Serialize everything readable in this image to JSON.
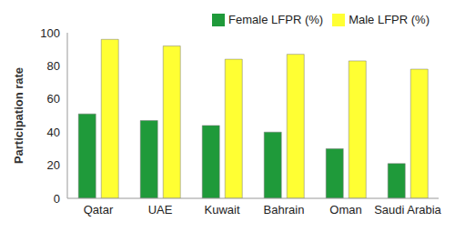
{
  "chart_data": {
    "type": "bar",
    "y_label": "Participation rate",
    "categories": [
      "Qatar",
      "UAE",
      "Kuwait",
      "Bahrain",
      "Oman",
      "Saudi Arabia"
    ],
    "series": [
      {
        "name": "Female LFPR (%)",
        "color": "#1f9a3a",
        "values": [
          51,
          47,
          44,
          40,
          30,
          21
        ]
      },
      {
        "name": "Male LFPR (%)",
        "color": "#ffff33",
        "values": [
          96,
          92,
          84,
          87,
          83,
          78
        ]
      }
    ],
    "ylim": [
      0,
      100
    ],
    "yticks": [
      0,
      20,
      40,
      60,
      80,
      100
    ],
    "grid": false,
    "legend": "top"
  }
}
